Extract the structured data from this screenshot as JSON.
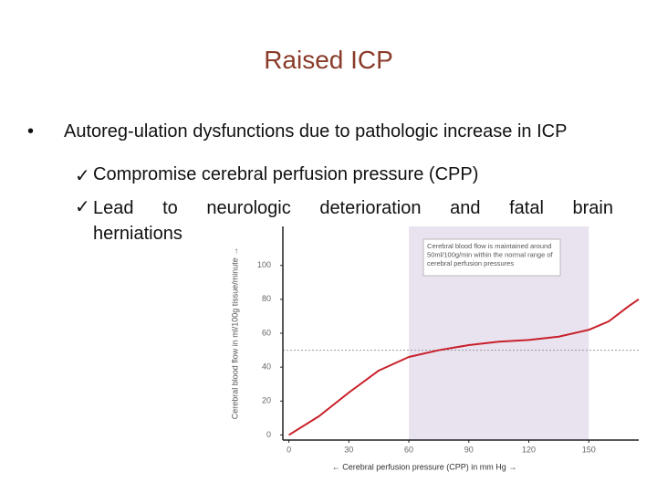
{
  "slide": {
    "title": "Raised ICP",
    "bullet": "Autoreg-ulation dysfunctions due to pathologic increase in ICP",
    "subbullets": [
      "Compromise cerebral perfusion pressure (CPP)",
      "Lead to neurologic deterioration and fatal brain herniations"
    ]
  },
  "chart_data": {
    "type": "line",
    "x_label": "← Cerebral perfusion pressure (CPP) in mm Hg →",
    "y_label": "Cerebral blood flow in ml/100g tissue/minute →",
    "annotation": "Cerebral blood flow is maintained around 50ml/100g/min within the normal range of cerebral perfusion pressures",
    "x": [
      0,
      15,
      30,
      45,
      60,
      75,
      90,
      105,
      120,
      135,
      150,
      160,
      170,
      175
    ],
    "series": [
      {
        "name": "Cerebral blood flow",
        "color": "#c8202a",
        "values": [
          0,
          11,
          25,
          38,
          46,
          50,
          53,
          55,
          56,
          58,
          62,
          67,
          76,
          80
        ]
      }
    ],
    "shaded_range": [
      60,
      150
    ],
    "reference_line": 50,
    "xlim": [
      -3,
      175
    ],
    "ylim": [
      -3,
      123
    ],
    "xticks": [
      0,
      30,
      60,
      90,
      120,
      150
    ],
    "yticks": [
      0,
      20,
      40,
      60,
      80,
      100
    ]
  }
}
